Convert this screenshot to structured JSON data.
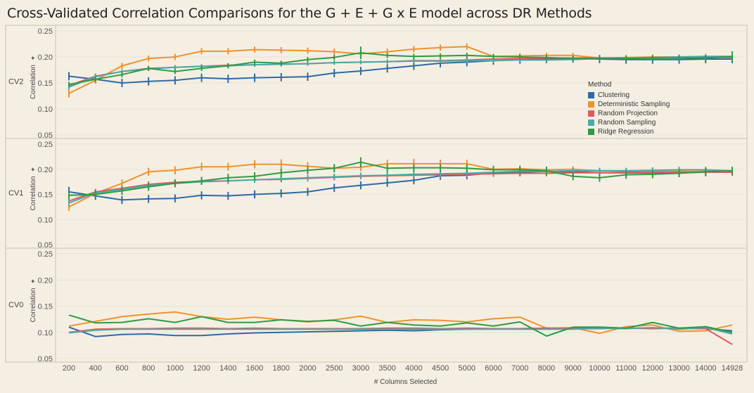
{
  "title": "Cross-Validated Correlation Comparisons for the G + E + G x E model across DR Methods",
  "chart_data": {
    "type": "line",
    "title": "Cross-Validated Correlation Comparisons for the G + E + G x E model across DR Methods",
    "xlabel": "# Columns Selected",
    "ylabel": "Correlation",
    "ylabel_icon": "pin-icon",
    "ylim": [
      0.05,
      0.25
    ],
    "yticks": [
      "0.25",
      "0.20",
      "0.15",
      "0.10",
      "0.05"
    ],
    "categories": [
      "200",
      "400",
      "600",
      "800",
      "1000",
      "1200",
      "1400",
      "1600",
      "1800",
      "2000",
      "2500",
      "3000",
      "3500",
      "4000",
      "4500",
      "5000",
      "6000",
      "7000",
      "8000",
      "9000",
      "10000",
      "11000",
      "12000",
      "13000",
      "14000",
      "14928"
    ],
    "legend": {
      "title": "Method",
      "placement": "right",
      "items": [
        {
          "name": "Clustering",
          "color": "#2e6aa6"
        },
        {
          "name": "Deterministic Sampling",
          "color": "#f0922b"
        },
        {
          "name": "Random Projection",
          "color": "#e6575e"
        },
        {
          "name": "Random Sampling",
          "color": "#4aaaa8"
        },
        {
          "name": "Ridge Regression",
          "color": "#2e9c45"
        }
      ]
    },
    "panels": [
      {
        "label": "CV2",
        "series": [
          {
            "name": "Clustering",
            "values": [
              0.163,
              0.157,
              0.15,
              0.153,
              0.155,
              0.16,
              0.158,
              0.16,
              0.161,
              0.162,
              0.169,
              0.173,
              0.178,
              0.183,
              0.188,
              0.19,
              0.193,
              0.195,
              0.196,
              0.197,
              0.196,
              0.195,
              0.195,
              0.195,
              0.196,
              0.196
            ],
            "err": [
              0.008,
              0.008,
              0.008,
              0.008,
              0.008,
              0.008,
              0.008,
              0.008,
              0.008,
              0.008,
              0.008,
              0.008,
              0.008,
              0.008,
              0.008,
              0.008,
              0.008,
              0.008,
              0.008,
              0.008,
              0.008,
              0.008,
              0.008,
              0.008,
              0.008,
              0.008
            ]
          },
          {
            "name": "Deterministic Sampling",
            "values": [
              0.13,
              0.155,
              0.183,
              0.197,
              0.2,
              0.211,
              0.211,
              0.214,
              0.213,
              0.212,
              0.21,
              0.206,
              0.21,
              0.215,
              0.218,
              0.22,
              0.201,
              0.202,
              0.203,
              0.203,
              0.198,
              0.199,
              0.2,
              0.2,
              0.201,
              0.201
            ],
            "err": [
              0.008,
              0.006,
              0.006,
              0.006,
              0.006,
              0.006,
              0.006,
              0.006,
              0.006,
              0.006,
              0.006,
              0.006,
              0.006,
              0.006,
              0.006,
              0.006,
              0.005,
              0.005,
              0.005,
              0.005,
              0.005,
              0.005,
              0.005,
              0.005,
              0.005,
              0.005
            ]
          },
          {
            "name": "Random Projection",
            "values": [
              0.145,
              0.163,
              0.172,
              0.178,
              0.18,
              0.182,
              0.184,
              0.185,
              0.186,
              0.187,
              0.189,
              0.19,
              0.191,
              0.193,
              0.193,
              0.194,
              0.196,
              0.197,
              0.198,
              0.198,
              0.198,
              0.198,
              0.198,
              0.199,
              0.199,
              0.199
            ],
            "err": [
              0.005,
              0.005,
              0.004,
              0.004,
              0.004,
              0.004,
              0.004,
              0.004,
              0.004,
              0.004,
              0.004,
              0.004,
              0.004,
              0.004,
              0.004,
              0.004,
              0.004,
              0.004,
              0.004,
              0.004,
              0.004,
              0.004,
              0.004,
              0.004,
              0.004,
              0.004
            ]
          },
          {
            "name": "Random Sampling",
            "values": [
              0.142,
              0.162,
              0.172,
              0.177,
              0.18,
              0.182,
              0.183,
              0.185,
              0.186,
              0.187,
              0.189,
              0.19,
              0.191,
              0.192,
              0.192,
              0.193,
              0.193,
              0.194,
              0.194,
              0.195,
              0.197,
              0.198,
              0.199,
              0.2,
              0.201,
              0.201
            ],
            "err": [
              0.005,
              0.005,
              0.004,
              0.004,
              0.004,
              0.004,
              0.004,
              0.004,
              0.004,
              0.004,
              0.004,
              0.004,
              0.004,
              0.004,
              0.004,
              0.004,
              0.004,
              0.004,
              0.004,
              0.004,
              0.004,
              0.004,
              0.004,
              0.004,
              0.004,
              0.004
            ]
          },
          {
            "name": "Ridge Regression",
            "values": [
              0.147,
              0.157,
              0.166,
              0.178,
              0.172,
              0.178,
              0.183,
              0.19,
              0.188,
              0.195,
              0.199,
              0.208,
              0.203,
              0.201,
              0.202,
              0.203,
              0.201,
              0.2,
              0.199,
              0.197,
              0.197,
              0.197,
              0.198,
              0.198,
              0.198,
              0.201
            ],
            "err": [
              0.005,
              0.005,
              0.005,
              0.005,
              0.005,
              0.005,
              0.005,
              0.005,
              0.005,
              0.005,
              0.005,
              0.012,
              0.005,
              0.005,
              0.005,
              0.005,
              0.005,
              0.005,
              0.005,
              0.005,
              0.005,
              0.005,
              0.005,
              0.005,
              0.005,
              0.01
            ]
          }
        ]
      },
      {
        "label": "CV1",
        "series": [
          {
            "name": "Clustering",
            "values": [
              0.155,
              0.147,
              0.139,
              0.141,
              0.142,
              0.148,
              0.147,
              0.15,
              0.152,
              0.155,
              0.163,
              0.168,
              0.173,
              0.178,
              0.187,
              0.188,
              0.193,
              0.194,
              0.196,
              0.195,
              0.193,
              0.193,
              0.193,
              0.193,
              0.194,
              0.195
            ],
            "err": [
              0.01,
              0.008,
              0.008,
              0.008,
              0.008,
              0.008,
              0.008,
              0.008,
              0.008,
              0.008,
              0.008,
              0.008,
              0.008,
              0.008,
              0.008,
              0.008,
              0.008,
              0.008,
              0.008,
              0.008,
              0.008,
              0.008,
              0.008,
              0.008,
              0.008,
              0.008
            ]
          },
          {
            "name": "Deterministic Sampling",
            "values": [
              0.125,
              0.152,
              0.172,
              0.195,
              0.198,
              0.205,
              0.205,
              0.21,
              0.21,
              0.206,
              0.202,
              0.204,
              0.211,
              0.211,
              0.211,
              0.211,
              0.2,
              0.201,
              0.199,
              0.2,
              0.197,
              0.196,
              0.196,
              0.196,
              0.196,
              0.196
            ],
            "err": [
              0.008,
              0.008,
              0.008,
              0.008,
              0.008,
              0.008,
              0.008,
              0.008,
              0.01,
              0.008,
              0.008,
              0.008,
              0.008,
              0.01,
              0.008,
              0.008,
              0.006,
              0.006,
              0.006,
              0.006,
              0.006,
              0.006,
              0.006,
              0.006,
              0.006,
              0.006
            ]
          },
          {
            "name": "Random Projection",
            "values": [
              0.137,
              0.155,
              0.162,
              0.17,
              0.174,
              0.176,
              0.177,
              0.179,
              0.18,
              0.182,
              0.184,
              0.186,
              0.187,
              0.188,
              0.189,
              0.19,
              0.191,
              0.192,
              0.192,
              0.193,
              0.193,
              0.194,
              0.194,
              0.194,
              0.194,
              0.194
            ],
            "err": [
              0.006,
              0.006,
              0.006,
              0.006,
              0.006,
              0.006,
              0.006,
              0.006,
              0.006,
              0.006,
              0.006,
              0.006,
              0.006,
              0.006,
              0.006,
              0.006,
              0.006,
              0.006,
              0.006,
              0.006,
              0.006,
              0.006,
              0.006,
              0.006,
              0.006,
              0.006
            ]
          },
          {
            "name": "Random Sampling",
            "values": [
              0.133,
              0.153,
              0.16,
              0.168,
              0.172,
              0.175,
              0.177,
              0.179,
              0.181,
              0.183,
              0.185,
              0.187,
              0.188,
              0.19,
              0.191,
              0.192,
              0.194,
              0.196,
              0.196,
              0.197,
              0.197,
              0.197,
              0.198,
              0.199,
              0.199,
              0.197
            ],
            "err": [
              0.006,
              0.006,
              0.006,
              0.006,
              0.006,
              0.006,
              0.006,
              0.006,
              0.006,
              0.006,
              0.006,
              0.006,
              0.006,
              0.006,
              0.006,
              0.006,
              0.006,
              0.006,
              0.006,
              0.006,
              0.006,
              0.006,
              0.006,
              0.006,
              0.006,
              0.006
            ]
          },
          {
            "name": "Ridge Regression",
            "values": [
              0.148,
              0.15,
              0.157,
              0.165,
              0.172,
              0.177,
              0.183,
              0.186,
              0.193,
              0.198,
              0.202,
              0.214,
              0.202,
              0.203,
              0.203,
              0.202,
              0.199,
              0.199,
              0.197,
              0.186,
              0.183,
              0.189,
              0.19,
              0.192,
              0.195,
              0.197
            ],
            "err": [
              0.008,
              0.008,
              0.008,
              0.008,
              0.008,
              0.008,
              0.008,
              0.008,
              0.008,
              0.008,
              0.008,
              0.01,
              0.008,
              0.008,
              0.008,
              0.008,
              0.008,
              0.008,
              0.008,
              0.008,
              0.008,
              0.008,
              0.008,
              0.008,
              0.008,
              0.008
            ]
          }
        ]
      },
      {
        "label": "CV0",
        "series": [
          {
            "name": "Clustering",
            "values": [
              0.11,
              0.092,
              0.096,
              0.097,
              0.094,
              0.094,
              0.097,
              0.099,
              0.1,
              0.101,
              0.102,
              0.103,
              0.104,
              0.103,
              0.105,
              0.106,
              0.107,
              0.107,
              0.108,
              0.108,
              0.108,
              0.108,
              0.108,
              0.108,
              0.107,
              0.103
            ]
          },
          {
            "name": "Deterministic Sampling",
            "values": [
              0.112,
              0.121,
              0.13,
              0.135,
              0.139,
              0.13,
              0.125,
              0.129,
              0.124,
              0.12,
              0.124,
              0.131,
              0.119,
              0.124,
              0.123,
              0.12,
              0.126,
              0.129,
              0.108,
              0.109,
              0.098,
              0.111,
              0.114,
              0.102,
              0.103,
              0.114
            ]
          },
          {
            "name": "Random Projection",
            "values": [
              0.1,
              0.106,
              0.107,
              0.107,
              0.108,
              0.108,
              0.107,
              0.108,
              0.107,
              0.107,
              0.107,
              0.107,
              0.108,
              0.108,
              0.107,
              0.108,
              0.107,
              0.107,
              0.108,
              0.107,
              0.107,
              0.108,
              0.107,
              0.108,
              0.107,
              0.077
            ]
          },
          {
            "name": "Random Sampling",
            "values": [
              0.099,
              0.104,
              0.106,
              0.106,
              0.106,
              0.106,
              0.106,
              0.106,
              0.106,
              0.106,
              0.106,
              0.106,
              0.106,
              0.106,
              0.106,
              0.106,
              0.106,
              0.106,
              0.106,
              0.106,
              0.108,
              0.107,
              0.109,
              0.106,
              0.109,
              0.097
            ]
          },
          {
            "name": "Ridge Regression",
            "values": [
              0.133,
              0.118,
              0.119,
              0.126,
              0.119,
              0.13,
              0.119,
              0.119,
              0.124,
              0.121,
              0.123,
              0.112,
              0.119,
              0.114,
              0.112,
              0.118,
              0.112,
              0.12,
              0.093,
              0.11,
              0.11,
              0.108,
              0.119,
              0.108,
              0.111,
              0.1
            ]
          }
        ]
      }
    ]
  }
}
